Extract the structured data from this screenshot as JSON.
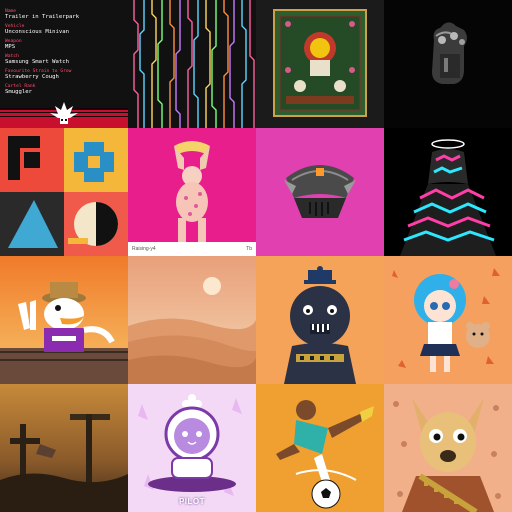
{
  "nft_card": {
    "fields": [
      {
        "label": "Name",
        "value": "Trailer in Trailerpark"
      },
      {
        "label": "Vehicle",
        "value": "Unconscious Minivan"
      },
      {
        "label": "Weapon",
        "value": "MPS"
      },
      {
        "label": "Watch",
        "value": "Samsung Smart Watch"
      },
      {
        "label": "Favourite Strain to Grow",
        "value": "Strawberry Cough"
      },
      {
        "label": "Cartel Rank",
        "value": "Smuggler"
      }
    ]
  },
  "monkey_card": {
    "caption_left": "Raising-y4",
    "caption_right": "Tb"
  },
  "astronaut_card": {
    "caption": "PILOT"
  },
  "tiles": [
    {
      "name": "trait-card",
      "bg": "#111111"
    },
    {
      "name": "neon-lines",
      "bg": "#111111"
    },
    {
      "name": "ornate-poster",
      "bg": "#1a1a1a"
    },
    {
      "name": "sculpture",
      "bg": "#050505"
    },
    {
      "name": "geometric-abstract",
      "bg": "#f05a4a"
    },
    {
      "name": "monkey-statue",
      "bg": "#e81e8c"
    },
    {
      "name": "robot-helmet",
      "bg": "#e040b0"
    },
    {
      "name": "glitch-figure",
      "bg": "#000000"
    },
    {
      "name": "duck-character",
      "bg": "#f39c44"
    },
    {
      "name": "desert-dunes",
      "bg": "#e89a6a"
    },
    {
      "name": "shadow-creature",
      "bg": "#f6a35a"
    },
    {
      "name": "anime-girl",
      "bg": "#f6a060"
    },
    {
      "name": "wasteland-scene",
      "bg": "#8b5a2b"
    },
    {
      "name": "astronaut-cat",
      "bg": "#f3d9f6"
    },
    {
      "name": "soccer-player",
      "bg": "#f0a030"
    },
    {
      "name": "dog-portrait",
      "bg": "#f2b08a"
    }
  ]
}
